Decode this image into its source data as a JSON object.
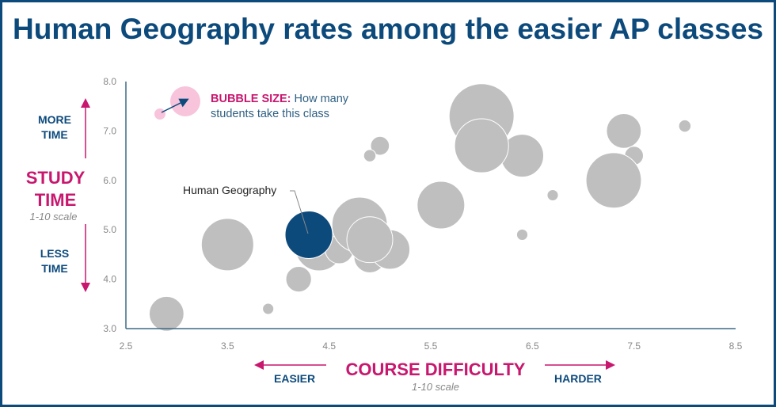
{
  "chart_data": {
    "type": "bubble",
    "title": "Human Geography rates among the easier AP classes",
    "xlabel": "COURSE DIFFICULTY",
    "xlabel_sub": "1-10 scale",
    "ylabel": "STUDY TIME",
    "ylabel_sub": "1-10 scale",
    "xlim": [
      2.5,
      8.5
    ],
    "ylim": [
      3.0,
      8.0
    ],
    "xticks": [
      "2.5",
      "3.5",
      "4.5",
      "5.5",
      "6.5",
      "7.5",
      "8.5"
    ],
    "yticks": [
      "3.0",
      "4.0",
      "5.0",
      "6.0",
      "7.0",
      "8.0"
    ],
    "grid": false,
    "colors": {
      "default": "#bfbfbf",
      "highlight": "#0d4a7c",
      "accent": "#c8176e",
      "legend": "#f7c4dc"
    },
    "highlight_label": "Human Geography",
    "points": [
      {
        "x": 2.9,
        "y": 3.3,
        "size": 4.8
      },
      {
        "x": 3.5,
        "y": 4.7,
        "size": 10.9
      },
      {
        "x": 4.2,
        "y": 4.0,
        "size": 2.6
      },
      {
        "x": 3.9,
        "y": 3.4,
        "size": 0.5
      },
      {
        "x": 4.4,
        "y": 4.65,
        "size": 9.0
      },
      {
        "x": 4.6,
        "y": 4.6,
        "size": 3.2
      },
      {
        "x": 4.8,
        "y": 5.1,
        "size": 12.2
      },
      {
        "x": 4.9,
        "y": 4.45,
        "size": 4.0
      },
      {
        "x": 5.1,
        "y": 4.6,
        "size": 6.2
      },
      {
        "x": 4.9,
        "y": 4.8,
        "size": 8.4
      },
      {
        "x": 5.0,
        "y": 6.7,
        "size": 1.4
      },
      {
        "x": 4.9,
        "y": 6.5,
        "size": 0.6
      },
      {
        "x": 5.6,
        "y": 5.5,
        "size": 9.0
      },
      {
        "x": 6.0,
        "y": 7.3,
        "size": 16.8
      },
      {
        "x": 6.4,
        "y": 6.8,
        "size": 0.8
      },
      {
        "x": 6.4,
        "y": 6.5,
        "size": 7.3
      },
      {
        "x": 6.0,
        "y": 6.7,
        "size": 11.6
      },
      {
        "x": 6.4,
        "y": 4.9,
        "size": 0.5
      },
      {
        "x": 6.7,
        "y": 5.7,
        "size": 0.5
      },
      {
        "x": 7.4,
        "y": 7.0,
        "size": 4.8
      },
      {
        "x": 7.5,
        "y": 6.5,
        "size": 1.4
      },
      {
        "x": 7.3,
        "y": 6.0,
        "size": 12.2
      },
      {
        "x": 8.0,
        "y": 7.1,
        "size": 0.6
      },
      {
        "x": 4.3,
        "y": 4.9,
        "size": 9.0,
        "highlight": true
      }
    ]
  },
  "legend": {
    "bold": "BUBBLE SIZE:",
    "text1": "How many",
    "text2": "students take this class"
  },
  "y_annotations": {
    "more1": "MORE",
    "more2": "TIME",
    "less1": "LESS",
    "less2": "TIME"
  },
  "x_annotations": {
    "easier": "EASIER",
    "harder": "HARDER"
  }
}
